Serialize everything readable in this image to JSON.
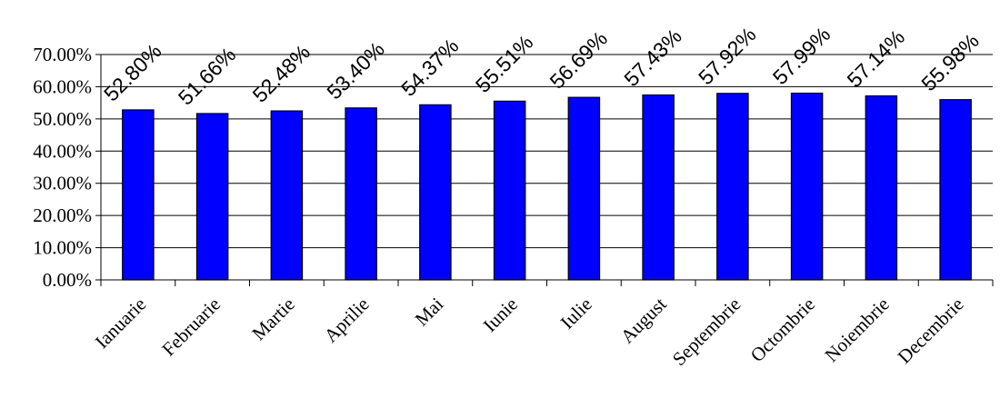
{
  "chart_data": {
    "type": "bar",
    "categories": [
      "Ianuarie",
      "Februarie",
      "Martie",
      "Aprilie",
      "Mai",
      "Iunie",
      "Iulie",
      "August",
      "Septembrie",
      "Octombrie",
      "Noiembrie",
      "Decembrie"
    ],
    "values": [
      52.8,
      51.66,
      52.48,
      53.4,
      54.37,
      55.51,
      56.69,
      57.43,
      57.92,
      57.99,
      57.14,
      55.98
    ],
    "data_labels": [
      "52.80%",
      "51.66%",
      "52.48%",
      "53.40%",
      "54.37%",
      "55.51%",
      "56.69%",
      "57.43%",
      "57.92%",
      "57.99%",
      "57.14%",
      "55.98%"
    ],
    "y_ticks": [
      0,
      10,
      20,
      30,
      40,
      50,
      60,
      70
    ],
    "y_tick_labels": [
      "0.00%",
      "10.00%",
      "20.00%",
      "30.00%",
      "40.00%",
      "50.00%",
      "60.00%",
      "70.00%"
    ],
    "ylim": [
      0,
      70
    ],
    "grid": true,
    "legend": "none",
    "bar_color": "#0000FF",
    "bar_edge_color": "#000000"
  }
}
